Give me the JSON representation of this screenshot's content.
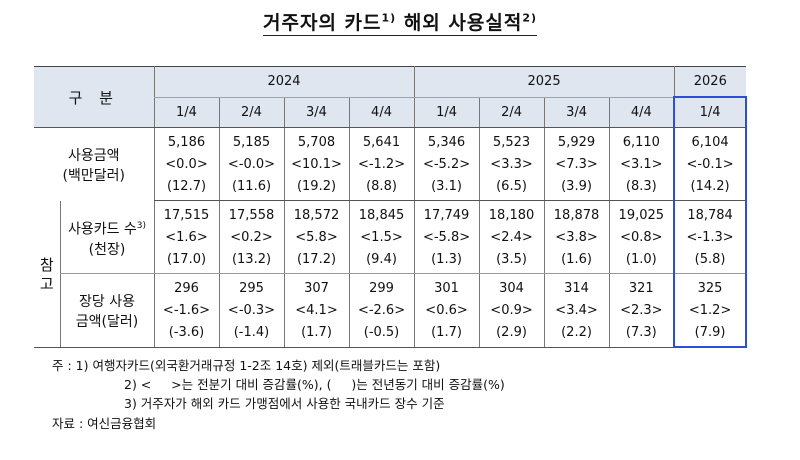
{
  "title": {
    "text": "거주자의 카드",
    "sup1": "1)",
    "text2": "해외 사용실적",
    "sup2": "2)"
  },
  "header": {
    "category": "구 분",
    "years": [
      "2024",
      "2025",
      "2026"
    ],
    "quarters": [
      "1/4",
      "2/4",
      "3/4",
      "4/4",
      "1/4",
      "2/4",
      "3/4",
      "4/4",
      "1/4"
    ]
  },
  "side_label": {
    "line1": "참",
    "line2": "고"
  },
  "rows": [
    {
      "label1": "사용금액",
      "label2": "(백만달러)",
      "label_sup": "",
      "values": [
        "5,186",
        "5,185",
        "5,708",
        "5,641",
        "5,346",
        "5,523",
        "5,929",
        "6,110",
        "6,104"
      ],
      "qoq": [
        "<0.0>",
        "<-0.0>",
        "<10.1>",
        "<-1.2>",
        "<-5.2>",
        "<3.3>",
        "<7.3>",
        "<3.1>",
        "<-0.1>"
      ],
      "yoy": [
        "(12.7)",
        "(11.6)",
        "(19.2)",
        "(8.8)",
        "(3.1)",
        "(6.5)",
        "(3.9)",
        "(8.3)",
        "(14.2)"
      ]
    },
    {
      "label1": "사용카드 수",
      "label2": "(천장)",
      "label_sup": "3)",
      "values": [
        "17,515",
        "17,558",
        "18,572",
        "18,845",
        "17,749",
        "18,180",
        "18,878",
        "19,025",
        "18,784"
      ],
      "qoq": [
        "<1.6>",
        "<0.2>",
        "<5.8>",
        "<1.5>",
        "<-5.8>",
        "<2.4>",
        "<3.8>",
        "<0.8>",
        "<-1.3>"
      ],
      "yoy": [
        "(17.0)",
        "(13.2)",
        "(17.2)",
        "(9.4)",
        "(1.3)",
        "(3.5)",
        "(1.6)",
        "(1.0)",
        "(5.8)"
      ]
    },
    {
      "label1": "장당 사용",
      "label2": "금액(달러)",
      "label_sup": "",
      "values": [
        "296",
        "295",
        "307",
        "299",
        "301",
        "304",
        "314",
        "321",
        "325"
      ],
      "qoq": [
        "<-1.6>",
        "<-0.3>",
        "<4.1>",
        "<-2.6>",
        "<0.6>",
        "<0.9>",
        "<3.4>",
        "<2.3>",
        "<1.2>"
      ],
      "yoy": [
        "(-3.6)",
        "(-1.4)",
        "(1.7)",
        "(-0.5)",
        "(1.7)",
        "(2.9)",
        "(2.2)",
        "(7.3)",
        "(7.9)"
      ]
    }
  ],
  "notes": {
    "prefix": "주 : 1)",
    "note1": "여행자카드(외국환거래규정 1-2조 14호) 제외(트래블카드는 포함)",
    "note2": "2) <     >는 전분기 대비 증감률(%), (     )는 전년동기 대비 증감률(%)",
    "note3": "3) 거주자가 해외 카드 가맹점에서 사용한 국내카드 장수 기준"
  },
  "source": "자료 : 여신금융협회",
  "colors": {
    "header_bg": "#dfe6f0",
    "highlight_border": "#2b4fd8"
  }
}
